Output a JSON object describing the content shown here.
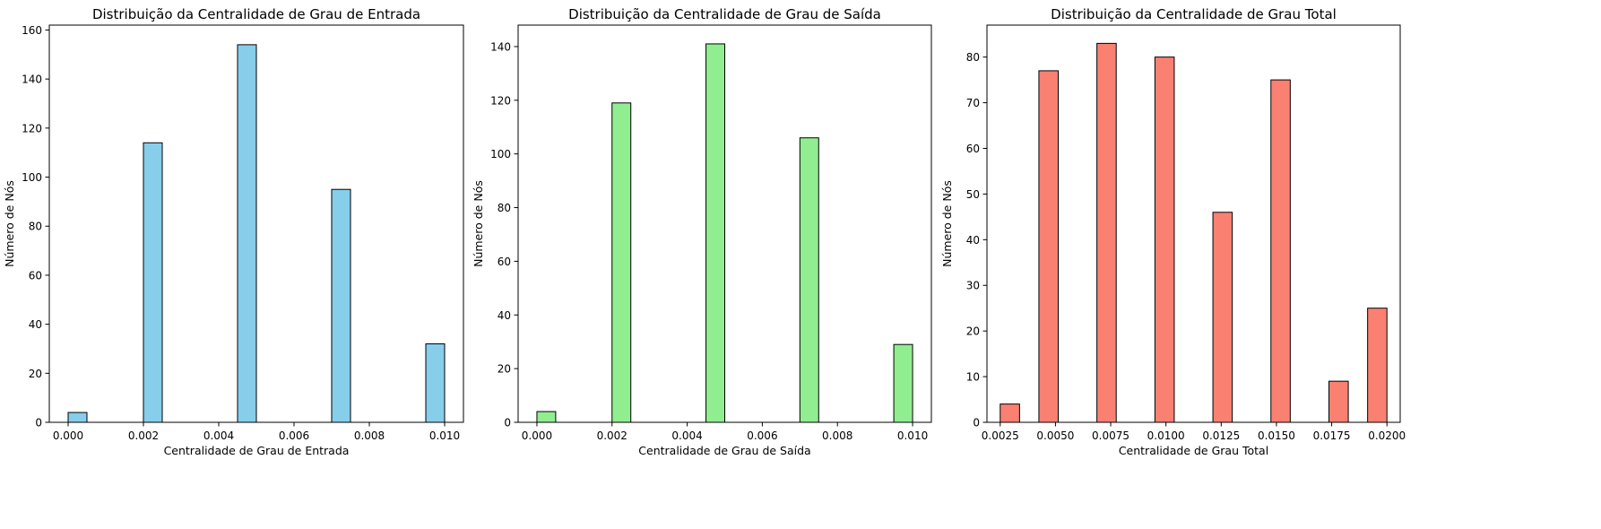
{
  "chart_data": [
    {
      "type": "bar",
      "title": "Distribuição da Centralidade de Grau de Entrada",
      "xlabel": "Centralidade de Grau de Entrada",
      "ylabel": "Número de Nós",
      "color": "#87CEEB",
      "edge_color": "#000000",
      "xlim": [
        -0.0005,
        0.0105
      ],
      "ylim": [
        0,
        162
      ],
      "xticks": [
        0.0,
        0.002,
        0.004,
        0.006,
        0.008,
        0.01
      ],
      "xtick_labels": [
        "0.000",
        "0.002",
        "0.004",
        "0.006",
        "0.008",
        "0.010"
      ],
      "yticks": [
        0,
        20,
        40,
        60,
        80,
        100,
        120,
        140,
        160
      ],
      "ytick_labels": [
        "0",
        "20",
        "40",
        "60",
        "80",
        "100",
        "120",
        "140",
        "160"
      ],
      "bin_width": 0.0005,
      "bins": [
        {
          "start": 0.0,
          "value": 4
        },
        {
          "start": 0.002,
          "value": 114
        },
        {
          "start": 0.0045,
          "value": 154
        },
        {
          "start": 0.007,
          "value": 95
        },
        {
          "start": 0.0095,
          "value": 32
        }
      ]
    },
    {
      "type": "bar",
      "title": "Distribuição da Centralidade de Grau de Saída",
      "xlabel": "Centralidade de Grau de Saída",
      "ylabel": "Número de Nós",
      "color": "#90EE90",
      "edge_color": "#000000",
      "xlim": [
        -0.0005,
        0.0105
      ],
      "ylim": [
        0,
        148
      ],
      "xticks": [
        0.0,
        0.002,
        0.004,
        0.006,
        0.008,
        0.01
      ],
      "xtick_labels": [
        "0.000",
        "0.002",
        "0.004",
        "0.006",
        "0.008",
        "0.010"
      ],
      "yticks": [
        0,
        20,
        40,
        60,
        80,
        100,
        120,
        140
      ],
      "ytick_labels": [
        "0",
        "20",
        "40",
        "60",
        "80",
        "100",
        "120",
        "140"
      ],
      "bin_width": 0.0005,
      "bins": [
        {
          "start": 0.0,
          "value": 4
        },
        {
          "start": 0.002,
          "value": 119
        },
        {
          "start": 0.0045,
          "value": 141
        },
        {
          "start": 0.007,
          "value": 106
        },
        {
          "start": 0.0095,
          "value": 29
        }
      ]
    },
    {
      "type": "bar",
      "title": "Distribuição da Centralidade de Grau Total",
      "xlabel": "Centralidade de Grau Total",
      "ylabel": "Número de Nós",
      "color": "#FA8072",
      "edge_color": "#000000",
      "xlim": [
        0.0019,
        0.0206
      ],
      "ylim": [
        0,
        87
      ],
      "xticks": [
        0.0025,
        0.005,
        0.0075,
        0.01,
        0.0125,
        0.015,
        0.0175,
        0.02
      ],
      "xtick_labels": [
        "0.0025",
        "0.0050",
        "0.0075",
        "0.0100",
        "0.0125",
        "0.0150",
        "0.0175",
        "0.0200"
      ],
      "yticks": [
        0,
        10,
        20,
        30,
        40,
        50,
        60,
        70,
        80
      ],
      "ytick_labels": [
        "0",
        "10",
        "20",
        "30",
        "40",
        "50",
        "60",
        "70",
        "80"
      ],
      "bin_width": 0.000875,
      "bins": [
        {
          "start": 0.0025,
          "value": 4
        },
        {
          "start": 0.00425,
          "value": 77
        },
        {
          "start": 0.006875,
          "value": 83
        },
        {
          "start": 0.0095,
          "value": 80
        },
        {
          "start": 0.012125,
          "value": 46
        },
        {
          "start": 0.01475,
          "value": 75
        },
        {
          "start": 0.017375,
          "value": 9
        },
        {
          "start": 0.019125,
          "value": 25
        }
      ]
    }
  ]
}
